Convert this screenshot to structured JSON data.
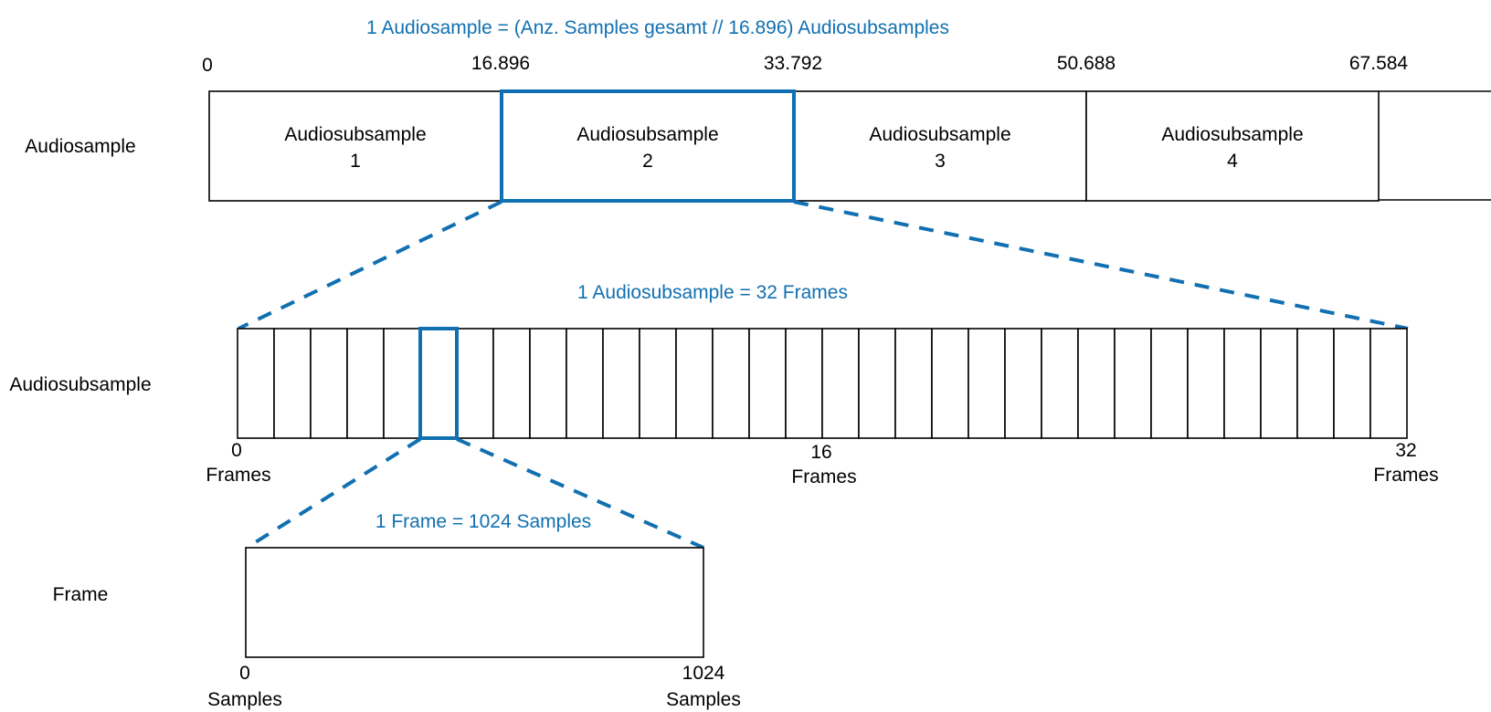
{
  "top_caption": "1 Audiosample = (Anz. Samples gesamt // 16.896) Audiosubsamples",
  "mid_caption": "1 Audiosubsample = 32 Frames",
  "low_caption": "1 Frame = 1024 Samples",
  "rows": {
    "audiosample": "Audiosample",
    "audiosubsample": "Audiosubsample",
    "frame": "Frame"
  },
  "top_ticks": [
    "0",
    "16.896",
    "33.792",
    "50.688",
    "67.584"
  ],
  "subsamples": [
    {
      "name": "Audiosubsample",
      "index": "1"
    },
    {
      "name": "Audiosubsample",
      "index": "2"
    },
    {
      "name": "Audiosubsample",
      "index": "3"
    },
    {
      "name": "Audiosubsample",
      "index": "4"
    }
  ],
  "highlighted_subsample": 2,
  "frames": {
    "count": 32,
    "highlighted": 6,
    "tick_0": "0",
    "tick_16": "16",
    "tick_32": "32",
    "unit": "Frames"
  },
  "samples": {
    "tick_0": "0",
    "tick_end": "1024",
    "unit": "Samples"
  },
  "colors": {
    "accent": "#1170b1"
  }
}
